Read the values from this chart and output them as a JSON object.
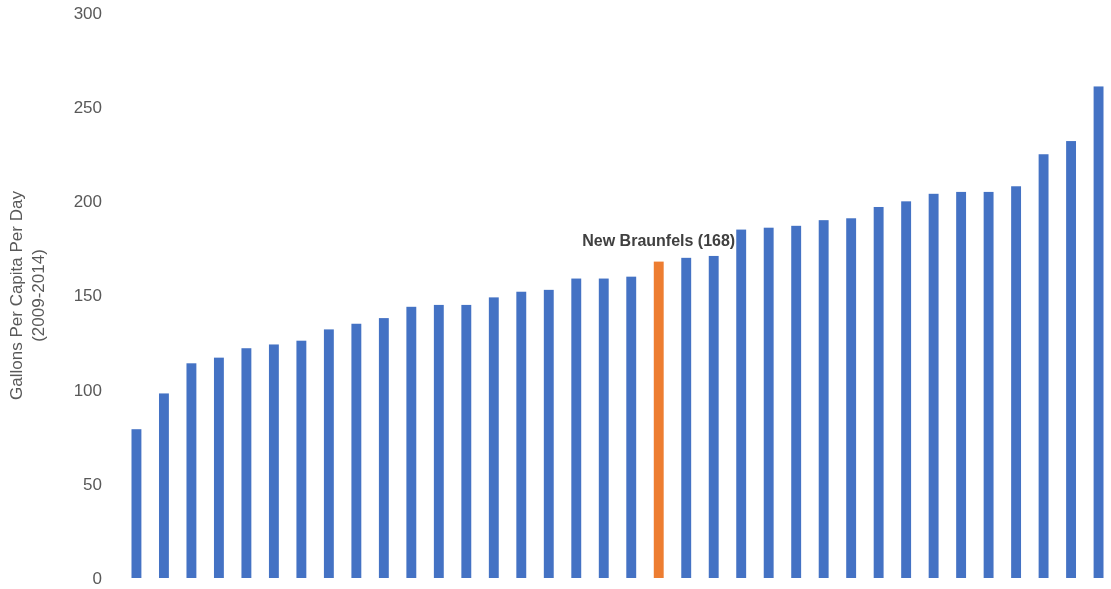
{
  "chart_data": {
    "type": "bar",
    "ylabel": "Gallons Per Capita Per Day\n(2009-2014)",
    "categories": [
      null,
      null,
      null,
      null,
      null,
      null,
      null,
      null,
      null,
      null,
      null,
      null,
      null,
      null,
      null,
      null,
      null,
      null,
      null,
      null,
      null,
      null,
      null,
      null,
      null,
      null,
      null,
      null,
      null,
      null,
      null,
      null,
      null,
      null,
      null,
      null
    ],
    "values": [
      79,
      98,
      114,
      117,
      122,
      124,
      126,
      132,
      135,
      138,
      144,
      145,
      145,
      149,
      152,
      153,
      159,
      159,
      160,
      168,
      170,
      171,
      185,
      186,
      187,
      190,
      191,
      197,
      200,
      204,
      205,
      205,
      208,
      225,
      232,
      261
    ],
    "colors": [
      "#4472c4",
      "#4472c4",
      "#4472c4",
      "#4472c4",
      "#4472c4",
      "#4472c4",
      "#4472c4",
      "#4472c4",
      "#4472c4",
      "#4472c4",
      "#4472c4",
      "#4472c4",
      "#4472c4",
      "#4472c4",
      "#4472c4",
      "#4472c4",
      "#4472c4",
      "#4472c4",
      "#4472c4",
      "#ed7d31",
      "#4472c4",
      "#4472c4",
      "#4472c4",
      "#4472c4",
      "#4472c4",
      "#4472c4",
      "#4472c4",
      "#4472c4",
      "#4472c4",
      "#4472c4",
      "#4472c4",
      "#4472c4",
      "#4472c4",
      "#4472c4",
      "#4472c4",
      "#4472c4"
    ],
    "ylim": [
      0,
      300
    ],
    "yticks": [
      0,
      50,
      100,
      150,
      200,
      250,
      300
    ],
    "annotations": [
      {
        "text": "New Braunfels (168)",
        "y": 168
      }
    ]
  }
}
